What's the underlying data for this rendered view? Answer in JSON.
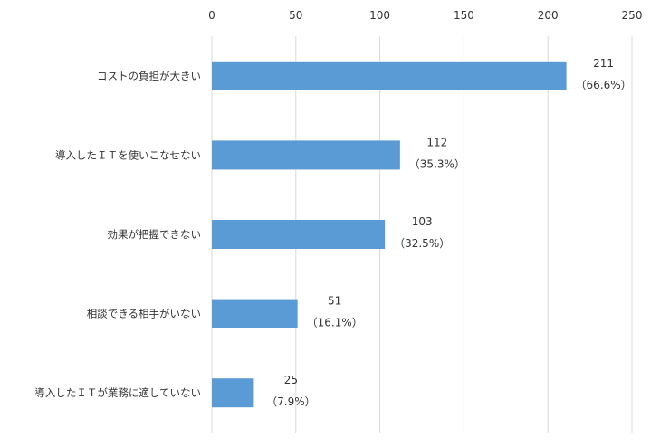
{
  "chart_data": {
    "type": "bar",
    "orientation": "horizontal",
    "categories": [
      "コストの負担が大きい",
      "導入したＩＴを使いこなせない",
      "効果が把握できない",
      "相談できる相手がいない",
      "導入したＩＴが業務に適していない"
    ],
    "values": [
      211,
      112,
      103,
      51,
      25
    ],
    "value_labels": [
      "211",
      "112",
      "103",
      "51",
      "25"
    ],
    "percent_labels": [
      "（66.6%）",
      "（35.3%）",
      "（32.5%）",
      "（16.1%）",
      "（7.9%）"
    ],
    "xlim": [
      0,
      250
    ],
    "x_ticks": [
      0,
      50,
      100,
      150,
      200,
      250
    ],
    "x_tick_labels": [
      "0",
      "50",
      "100",
      "150",
      "200",
      "250"
    ],
    "x_axis_position": "top",
    "grid": true,
    "legend": "none",
    "bar_color": "#5b9bd5"
  }
}
